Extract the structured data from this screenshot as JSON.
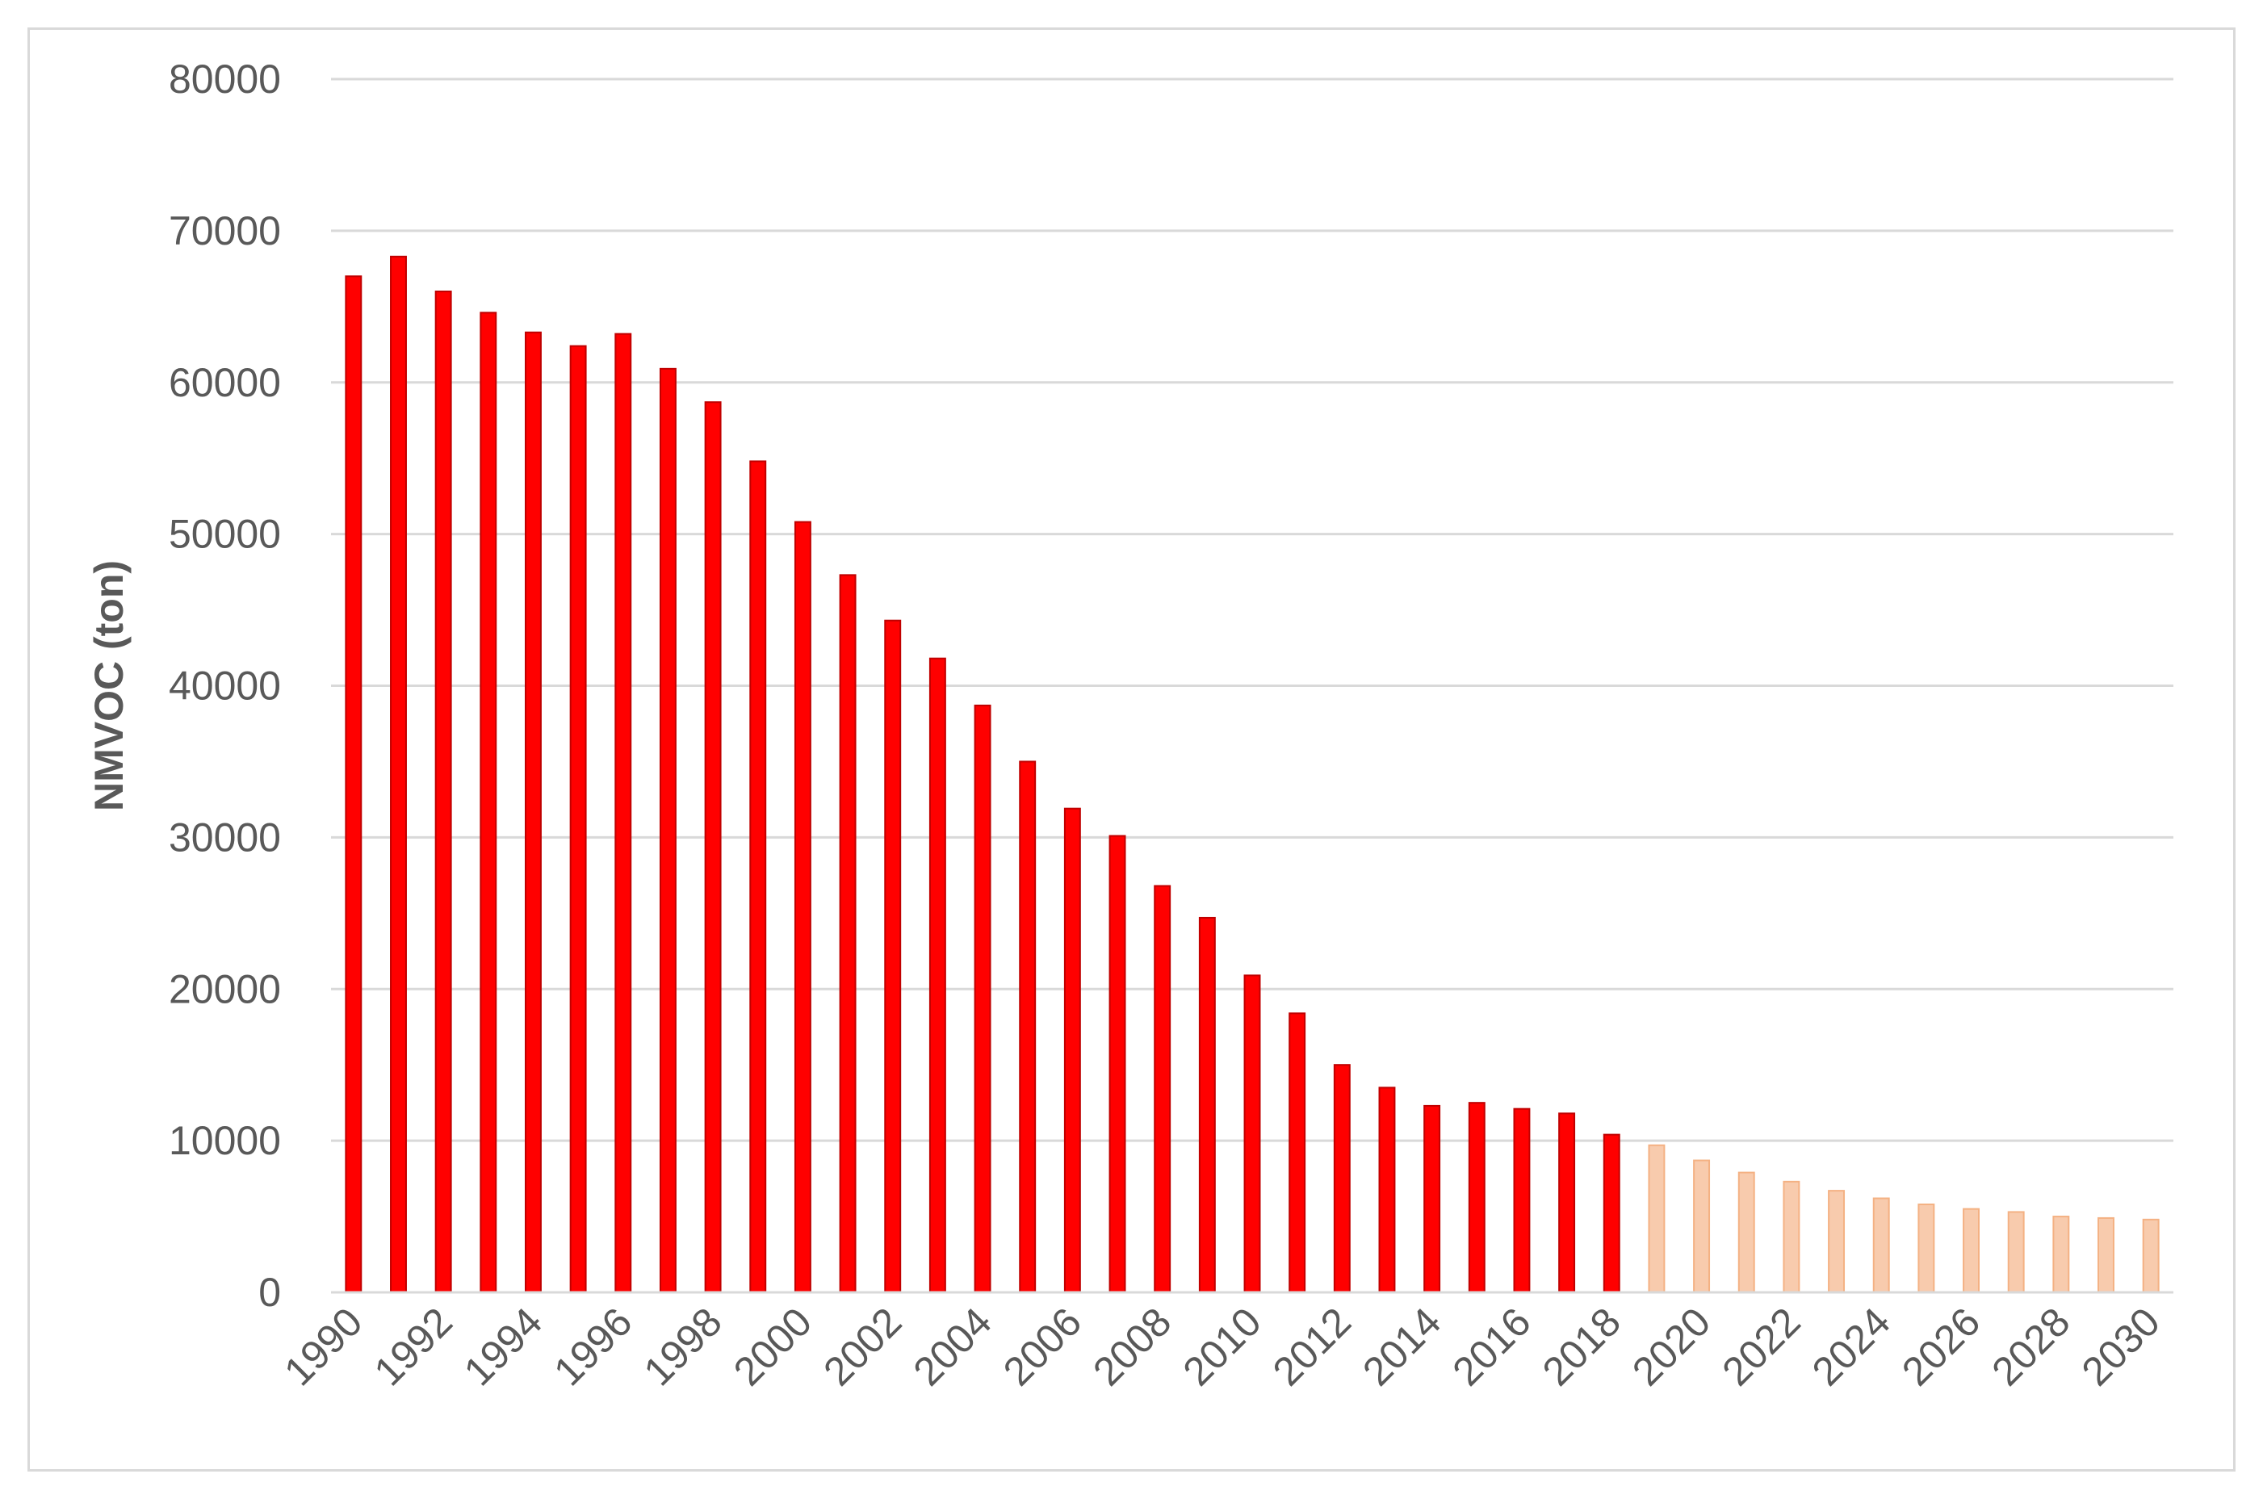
{
  "chart_data": {
    "type": "bar",
    "title": "",
    "xlabel": "",
    "ylabel": "NMVOC (ton)",
    "ylim": [
      0,
      80000
    ],
    "yticks": [
      0,
      10000,
      20000,
      30000,
      40000,
      50000,
      60000,
      70000,
      80000
    ],
    "grid": true,
    "legend": "none",
    "x": [
      1990,
      1991,
      1992,
      1993,
      1994,
      1995,
      1996,
      1997,
      1998,
      1999,
      2000,
      2001,
      2002,
      2003,
      2004,
      2005,
      2006,
      2007,
      2008,
      2009,
      2010,
      2011,
      2012,
      2013,
      2014,
      2015,
      2016,
      2017,
      2018,
      2019,
      2020,
      2021,
      2022,
      2023,
      2024,
      2025,
      2026,
      2027,
      2028,
      2029,
      2030
    ],
    "xtick_labels": [
      "1990",
      "1992",
      "1994",
      "1996",
      "1998",
      "2000",
      "2002",
      "2004",
      "2006",
      "2008",
      "2010",
      "2012",
      "2014",
      "2016",
      "2018",
      "2020",
      "2022",
      "2024",
      "2026",
      "2028",
      "2030"
    ],
    "series": [
      {
        "color": "#ff0000",
        "border": "#c00000",
        "values": [
          67000,
          68300,
          66000,
          64600,
          63300,
          62400,
          63200,
          60900,
          58700,
          54800,
          50800,
          47300,
          44300,
          41800,
          38700,
          35000,
          31900,
          30100,
          26800,
          24700,
          20900,
          18400,
          15000,
          13500,
          12300,
          12500,
          12100,
          11800,
          10400,
          null,
          null,
          null,
          null,
          null,
          null,
          null,
          null,
          null,
          null,
          null,
          null
        ]
      },
      {
        "color": "#f8cbad",
        "border": "#f4b183",
        "values": [
          null,
          null,
          null,
          null,
          null,
          null,
          null,
          null,
          null,
          null,
          null,
          null,
          null,
          null,
          null,
          null,
          null,
          null,
          null,
          null,
          null,
          null,
          null,
          null,
          null,
          null,
          null,
          null,
          null,
          9700,
          8700,
          7900,
          7300,
          6700,
          6200,
          5800,
          5500,
          5300,
          5000,
          4900,
          4800
        ]
      }
    ]
  }
}
